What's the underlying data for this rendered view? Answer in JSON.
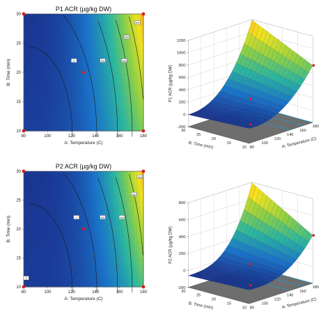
{
  "colors": {
    "low": "#1a2e8c",
    "mid_low": "#1a73c9",
    "mid": "#2bb6a0",
    "mid_high": "#8ed046",
    "high": "#f3e21e",
    "top": "#f2852a",
    "design_point": "#d62020",
    "contour_line": "#1a1a1a"
  },
  "chart_data": [
    {
      "id": "p1-contour",
      "type": "heatmap",
      "title": "P1 ACR (µg/kg DW)",
      "xlabel": "A: Temperature (C)",
      "ylabel": "B: Time (min)",
      "xlim": [
        80,
        180
      ],
      "ylim": [
        10,
        30
      ],
      "xticks": [
        "80",
        "100",
        "120",
        "140",
        "160",
        "180"
      ],
      "yticks": [
        "10",
        "15",
        "20",
        "25",
        "30"
      ],
      "contour_labels": [
        {
          "text": "0",
          "x": 122,
          "y": 22
        },
        {
          "text": "200",
          "x": 146,
          "y": 22
        },
        {
          "text": "400",
          "x": 164,
          "y": 22
        },
        {
          "text": "600",
          "x": 166,
          "y": 26
        },
        {
          "text": "800",
          "x": 175,
          "y": 28.5
        }
      ],
      "center_point": {
        "x": 130,
        "y": 20
      },
      "design_points": [
        [
          80,
          10
        ],
        [
          180,
          10
        ],
        [
          80,
          30
        ],
        [
          180,
          30
        ]
      ]
    },
    {
      "id": "p1-surface",
      "type": "surface",
      "zlabel": "P1 ACR (µg/kg DW)",
      "xlabel": "A: Temperature (C)",
      "ylabel": "B: Time (min)",
      "zticks": [
        "-200",
        "0",
        "200",
        "400",
        "600",
        "800",
        "1000",
        "1200"
      ],
      "xticks": [
        "80",
        "100",
        "120",
        "140",
        "160",
        "180"
      ],
      "yticks": [
        "10",
        "15",
        "20",
        "25",
        "30"
      ],
      "zlim": [
        -200,
        1200
      ]
    },
    {
      "id": "p2-contour",
      "type": "heatmap",
      "title": "P2 ACR (µg/kg DW)",
      "xlabel": "A: Temperature (C)",
      "ylabel": "B: Time (min)",
      "xlim": [
        80,
        180
      ],
      "ylim": [
        10,
        30
      ],
      "xticks": [
        "80",
        "100",
        "120",
        "140",
        "160",
        "180"
      ],
      "yticks": [
        "10",
        "15",
        "20",
        "25",
        "30"
      ],
      "contour_labels": [
        {
          "text": "0",
          "x": 82,
          "y": 11.5
        },
        {
          "text": "0",
          "x": 124,
          "y": 22
        },
        {
          "text": "100",
          "x": 146,
          "y": 22
        },
        {
          "text": "200",
          "x": 162,
          "y": 22
        },
        {
          "text": "300",
          "x": 172,
          "y": 26
        },
        {
          "text": "500",
          "x": 177,
          "y": 29
        }
      ],
      "center_point": {
        "x": 130,
        "y": 20
      },
      "design_points": [
        [
          80,
          10
        ],
        [
          180,
          10
        ],
        [
          80,
          30
        ],
        [
          180,
          30
        ]
      ]
    },
    {
      "id": "p2-surface",
      "type": "surface",
      "zlabel": "P2 ACR (µg/kg DW)",
      "xlabel": "A: Temperature (C)",
      "ylabel": "B: Time (min)",
      "zticks": [
        "-200",
        "0",
        "200",
        "400",
        "600",
        "800"
      ],
      "xticks": [
        "80",
        "100",
        "120",
        "140",
        "160",
        "180"
      ],
      "yticks": [
        "10",
        "15",
        "20",
        "25",
        "30"
      ],
      "zlim": [
        -200,
        800
      ]
    }
  ]
}
